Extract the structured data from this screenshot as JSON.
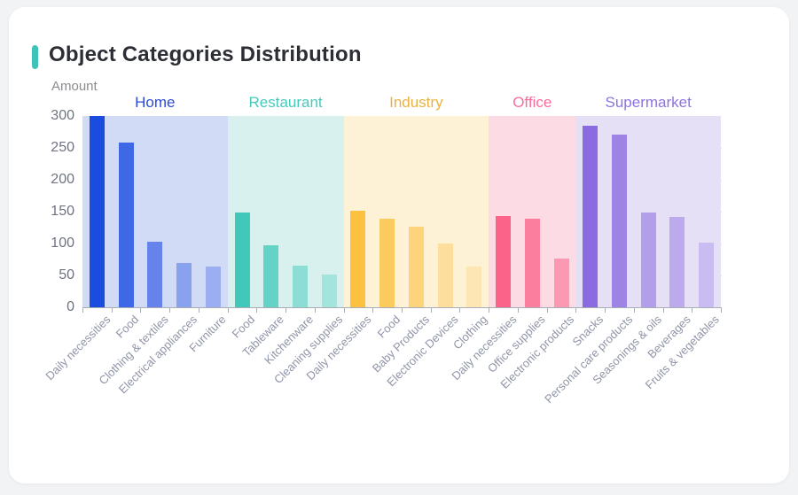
{
  "card": {
    "title": "Object Categories Distribution",
    "accent_color": "#3fc3b8"
  },
  "chart_data": {
    "type": "bar",
    "title": "Object Categories Distribution",
    "xlabel": "",
    "ylabel": "Amount",
    "ylim": [
      0,
      300
    ],
    "yticks": [
      0,
      50,
      100,
      150,
      200,
      250,
      300
    ],
    "grid": false,
    "legend_position": "none",
    "groups": [
      {
        "name": "Home",
        "label_color": "#2c4bd8",
        "band_color": "#d2dbf5",
        "bars": [
          {
            "label": "Daily necessities",
            "value": 300,
            "color": "#1a4ce0"
          },
          {
            "label": "Food",
            "value": 258,
            "color": "#3f68e7"
          },
          {
            "label": "Clothing & textiles",
            "value": 103,
            "color": "#6583ea"
          },
          {
            "label": "Electrical appliances",
            "value": 69,
            "color": "#8aa1ee"
          },
          {
            "label": "Furniture",
            "value": 64,
            "color": "#9aaef1"
          }
        ]
      },
      {
        "name": "Restaurant",
        "label_color": "#46cabc",
        "band_color": "#d8f1ee",
        "bars": [
          {
            "label": "Food",
            "value": 149,
            "color": "#40c8ba"
          },
          {
            "label": "Tableware",
            "value": 97,
            "color": "#65d2c7"
          },
          {
            "label": "Kitchenware",
            "value": 65,
            "color": "#8cded4"
          },
          {
            "label": "Cleaning supplies",
            "value": 51,
            "color": "#a3e5dd"
          }
        ]
      },
      {
        "name": "Industry",
        "label_color": "#e9b340",
        "band_color": "#fdf1d6",
        "bars": [
          {
            "label": "Daily necessities",
            "value": 151,
            "color": "#fcc13e"
          },
          {
            "label": "Food",
            "value": 139,
            "color": "#fccb5e"
          },
          {
            "label": "Baby Products",
            "value": 127,
            "color": "#fdd47b"
          },
          {
            "label": "Electronic Devices",
            "value": 100,
            "color": "#fdde9c"
          },
          {
            "label": "Clothing",
            "value": 64,
            "color": "#fee5b4"
          }
        ]
      },
      {
        "name": "Office",
        "label_color": "#fa6c9b",
        "band_color": "#fddbe5",
        "bars": [
          {
            "label": "Daily necessities",
            "value": 143,
            "color": "#fb6389"
          },
          {
            "label": "Office supplies",
            "value": 139,
            "color": "#fb7e9f"
          },
          {
            "label": "Electronic products",
            "value": 76,
            "color": "#fc98b2"
          }
        ]
      },
      {
        "name": "Supermarket",
        "label_color": "#8e73e2",
        "band_color": "#e5e0f6",
        "bars": [
          {
            "label": "Snacks",
            "value": 285,
            "color": "#8a6ce0"
          },
          {
            "label": "Personal care products",
            "value": 271,
            "color": "#9d83e4"
          },
          {
            "label": "Seasonings & oils",
            "value": 148,
            "color": "#b19fe9"
          },
          {
            "label": "Beverages",
            "value": 141,
            "color": "#bcaaec"
          },
          {
            "label": "Fruits & vegetables",
            "value": 102,
            "color": "#c9bcf0"
          }
        ]
      }
    ]
  }
}
